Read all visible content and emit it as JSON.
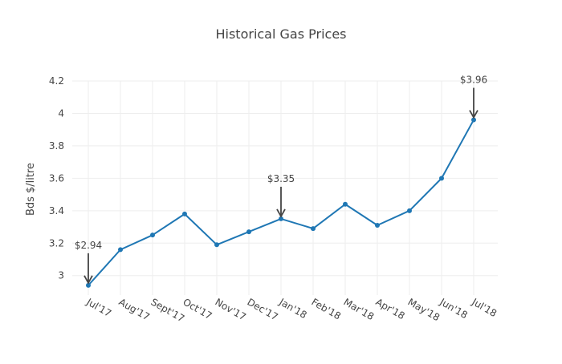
{
  "chart_data": {
    "type": "line",
    "title": "Historical Gas Prices",
    "xlabel": "",
    "ylabel": "Bds $/litre",
    "ylim": [
      2.88,
      4.2
    ],
    "yticks": [
      3,
      3.2,
      3.4,
      3.6,
      3.8,
      4,
      4.2
    ],
    "ytick_labels": [
      "3",
      "3.2",
      "3.4",
      "3.6",
      "3.8",
      "4",
      "4.2"
    ],
    "grid": true,
    "categories": [
      "Jul'17",
      "Aug'17",
      "Sept'17",
      "Oct'17",
      "Nov'17",
      "Dec'17",
      "Jan'18",
      "Feb'18",
      "Mar'18",
      "Apr'18",
      "May'18",
      "Jun'18",
      "Jul'18"
    ],
    "series": [
      {
        "values": [
          2.94,
          3.16,
          3.25,
          3.38,
          3.19,
          3.27,
          3.35,
          3.29,
          3.44,
          3.31,
          3.4,
          3.6,
          3.96
        ],
        "color": "#1f77b4"
      }
    ],
    "annotations": [
      {
        "category": "Jul'17",
        "value": 2.94,
        "text": "$2.94"
      },
      {
        "category": "Jan'18",
        "value": 3.35,
        "text": "$3.35"
      },
      {
        "category": "Jul'18",
        "value": 3.96,
        "text": "$3.96"
      }
    ]
  }
}
